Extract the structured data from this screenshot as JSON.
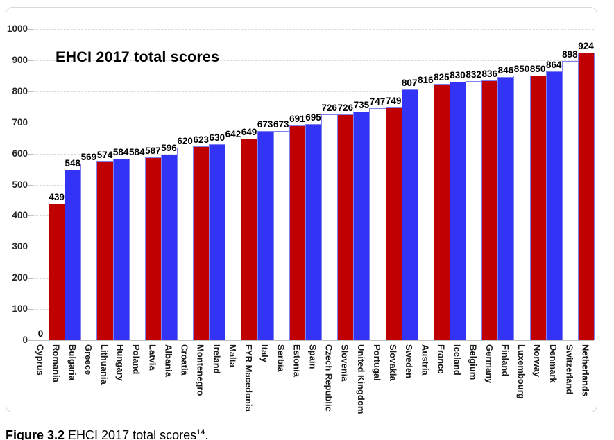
{
  "figure": {
    "caption_label": "Figure 3.2",
    "caption_text": " EHCI 2017 total scores",
    "caption_superscript": "14",
    "caption_period": "."
  },
  "colors": {
    "red": "#C00000",
    "blue": "#3333F5",
    "white": "#FFFFFF",
    "bar_border": "#8080F0",
    "gridline": "#D9D9D9",
    "axis_line": "#BFBFBF",
    "chart_border": "#D9D9D9",
    "label_text": "#000000"
  },
  "chart_data": {
    "type": "bar",
    "title": "EHCI 2017 total scores",
    "xlabel": "",
    "ylabel": "",
    "ylim": [
      0,
      1000
    ],
    "yticks": [
      0,
      100,
      200,
      300,
      400,
      500,
      600,
      700,
      800,
      900,
      1000
    ],
    "grid": "horizontal-dashed",
    "legend": "none",
    "data_labels": "above-bars",
    "categories": [
      "Cyprus",
      "Romania",
      "Bulgaria",
      "Greece",
      "Lithuania",
      "Hungary",
      "Poland",
      "Latvia",
      "Albania",
      "Croatia",
      "Montenegro",
      "Ireland",
      "Malta",
      "FYR Macedonia",
      "Italy",
      "Serbia",
      "Estonia",
      "Spain",
      "Czech Republic",
      "Slovenia",
      "United Kingdom",
      "Portugal",
      "Slovakia",
      "Sweden",
      "Austria",
      "France",
      "Iceland",
      "Belgium",
      "Germany",
      "Finland",
      "Luxembourg",
      "Norway",
      "Denmark",
      "Switzerland",
      "Netherlands"
    ],
    "values": [
      0,
      439,
      548,
      569,
      574,
      584,
      584,
      587,
      596,
      620,
      623,
      630,
      642,
      649,
      673,
      673,
      691,
      695,
      726,
      726,
      735,
      747,
      749,
      807,
      816,
      825,
      830,
      832,
      836,
      846,
      850,
      850,
      864,
      898,
      924
    ],
    "bar_colors": [
      "none",
      "red",
      "blue",
      "white",
      "red",
      "blue",
      "white",
      "red",
      "blue",
      "white",
      "red",
      "blue",
      "white",
      "red",
      "blue",
      "white",
      "red",
      "blue",
      "white",
      "red",
      "blue",
      "white",
      "red",
      "blue",
      "white",
      "red",
      "blue",
      "white",
      "red",
      "blue",
      "white",
      "red",
      "blue",
      "white",
      "red"
    ]
  }
}
